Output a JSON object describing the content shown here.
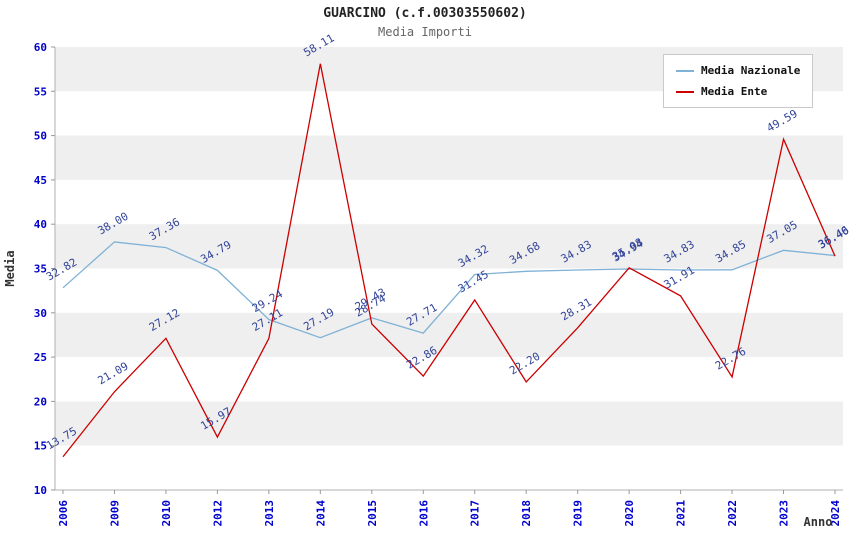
{
  "title": "GUARCINO (c.f.00303550602)",
  "subtitle": "Media Importi",
  "chart_data": {
    "type": "line",
    "title": "GUARCINO (c.f.00303550602)",
    "subtitle": "Media Importi",
    "xlabel": "Anno",
    "ylabel": "Media",
    "categories": [
      "2006",
      "2009",
      "2010",
      "2012",
      "2013",
      "2014",
      "2015",
      "2016",
      "2017",
      "2018",
      "2019",
      "2020",
      "2021",
      "2022",
      "2023",
      "2024"
    ],
    "series": [
      {
        "name": "Media Nazionale",
        "color": "#7fb2d6",
        "values": [
          32.82,
          38.0,
          37.36,
          34.79,
          29.24,
          27.19,
          29.43,
          27.71,
          34.32,
          34.68,
          34.83,
          34.94,
          34.83,
          34.85,
          37.05,
          36.46
        ]
      },
      {
        "name": "Media Ente",
        "color": "#cc0000",
        "values": [
          13.75,
          21.09,
          27.12,
          15.97,
          27.11,
          58.11,
          28.74,
          22.86,
          31.45,
          22.2,
          28.31,
          35.08,
          31.91,
          22.76,
          49.59,
          36.4
        ]
      }
    ],
    "ylim": [
      10,
      60
    ],
    "ytick_step": 5,
    "grid": "horizontal-bands",
    "band_colors": [
      "#efefef",
      "#ffffff"
    ],
    "axis_color": "#b0b0b0",
    "tick_color": "#0000cc",
    "label_color": "#334499",
    "axis_title_color": "#333333",
    "legend_position": "top-right"
  }
}
